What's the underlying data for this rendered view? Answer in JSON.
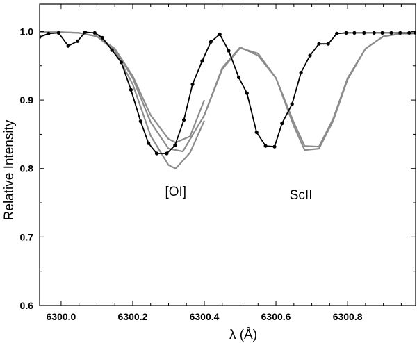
{
  "chart_data": {
    "type": "line",
    "xlabel": "λ (Å)",
    "ylabel": "Relative Intensity",
    "xlim": [
      6299.94,
      6300.99
    ],
    "ylim": [
      0.6,
      1.04
    ],
    "x_ticks": [
      6300.0,
      6300.2,
      6300.4,
      6300.6,
      6300.8
    ],
    "x_tick_labels": [
      "6300.0",
      "6300.2",
      "6300.4",
      "6300.6",
      "6300.8"
    ],
    "y_ticks": [
      0.6,
      0.7,
      0.8,
      0.9,
      1.0
    ],
    "y_tick_labels": [
      "0.6",
      "0.7",
      "0.8",
      "0.9",
      "1.0"
    ],
    "annotations": [
      {
        "text": "[OI]",
        "x": 6300.32,
        "y": 0.76
      },
      {
        "text": "ScII",
        "x": 6300.67,
        "y": 0.755
      }
    ],
    "colors": {
      "observed": "#000000",
      "synthetic": "#8c8c8c"
    },
    "series": [
      {
        "style": "observed",
        "x": [
          6299.94,
          6299.965,
          6299.993,
          6300.02,
          6300.046,
          6300.067,
          6300.094,
          6300.115,
          6300.142,
          6300.168,
          6300.195,
          6300.222,
          6300.244,
          6300.267,
          6300.295,
          6300.318,
          6300.343,
          6300.367,
          6300.394,
          6300.418,
          6300.443,
          6300.468,
          6300.496,
          6300.519,
          6300.546,
          6300.571,
          6300.596,
          6300.617,
          6300.645,
          6300.67,
          6300.695,
          6300.72,
          6300.746,
          6300.77,
          6300.796,
          6300.819,
          6300.846,
          6300.874,
          6300.897,
          6300.922,
          6300.947,
          6300.972,
          6300.99
        ],
        "y": [
          0.992,
          0.997,
          0.998,
          0.979,
          0.986,
          0.999,
          0.998,
          0.991,
          0.973,
          0.955,
          0.915,
          0.869,
          0.837,
          0.822,
          0.822,
          0.834,
          0.871,
          0.923,
          0.957,
          0.985,
          0.996,
          0.972,
          0.933,
          0.91,
          0.853,
          0.833,
          0.832,
          0.866,
          0.894,
          0.94,
          0.965,
          0.982,
          0.982,
          0.997,
          0.998,
          0.998,
          0.998,
          0.998,
          0.998,
          0.998,
          0.998,
          0.998,
          0.998
        ]
      },
      {
        "style": "synthetic",
        "x": [
          6299.94,
          6300.0,
          6300.05,
          6300.1,
          6300.15,
          6300.2,
          6300.25,
          6300.3,
          6300.34,
          6300.4,
          6300.45,
          6300.5,
          6300.55,
          6300.6,
          6300.65,
          6300.68,
          6300.72,
          6300.76,
          6300.8,
          6300.85,
          6300.9,
          6300.95,
          6300.99
        ],
        "y": [
          0.999,
          0.999,
          0.998,
          0.993,
          0.975,
          0.932,
          0.868,
          0.829,
          0.825,
          0.878,
          0.945,
          0.976,
          0.968,
          0.932,
          0.867,
          0.833,
          0.832,
          0.873,
          0.932,
          0.975,
          0.993,
          0.997,
          0.997
        ]
      },
      {
        "style": "synthetic",
        "x": [
          6299.94,
          6300.0,
          6300.05,
          6300.1,
          6300.15,
          6300.2,
          6300.25,
          6300.3,
          6300.32,
          6300.36,
          6300.4
        ],
        "y": [
          0.999,
          0.999,
          0.998,
          0.993,
          0.975,
          0.935,
          0.878,
          0.843,
          0.838,
          0.847,
          0.9
        ]
      },
      {
        "style": "synthetic",
        "x": [
          6300.1,
          6300.15,
          6300.2,
          6300.25,
          6300.3,
          6300.32,
          6300.36,
          6300.4
        ],
        "y": [
          0.993,
          0.972,
          0.923,
          0.848,
          0.805,
          0.8,
          0.823,
          0.87
        ]
      },
      {
        "style": "synthetic",
        "x": [
          6300.4,
          6300.45,
          6300.5,
          6300.55,
          6300.6,
          6300.65,
          6300.68,
          6300.72,
          6300.76,
          6300.8,
          6300.85,
          6300.9,
          6300.95,
          6300.99
        ],
        "y": [
          0.878,
          0.947,
          0.977,
          0.965,
          0.932,
          0.862,
          0.827,
          0.829,
          0.87,
          0.93,
          0.975,
          0.993,
          0.997,
          0.997
        ]
      }
    ]
  }
}
